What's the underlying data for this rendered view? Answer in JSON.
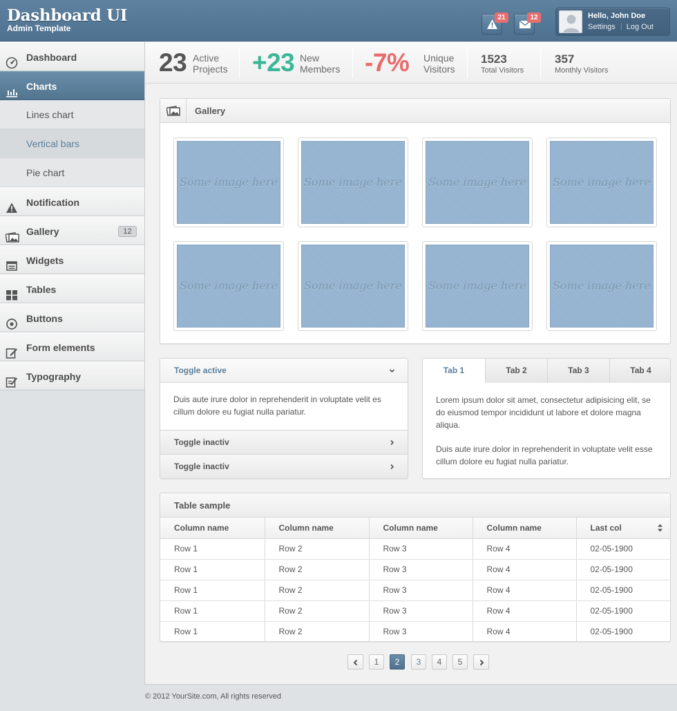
{
  "brand": {
    "title": "Dashboard UI",
    "subtitle": "Admin Template"
  },
  "header": {
    "alerts_count": "21",
    "messages_count": "12",
    "greeting": "Hello, John Doe",
    "settings_label": "Settings",
    "logout_label": "Log Out"
  },
  "sidebar": {
    "items": [
      {
        "label": "Dashboard",
        "icon": "dashboard-icon"
      },
      {
        "label": "Charts",
        "icon": "bar-chart-icon"
      },
      {
        "label": "Lines chart"
      },
      {
        "label": "Vertical bars"
      },
      {
        "label": "Pie chart"
      },
      {
        "label": "Notification",
        "icon": "warning-icon"
      },
      {
        "label": "Gallery",
        "icon": "gallery-icon",
        "count": "12"
      },
      {
        "label": "Widgets",
        "icon": "widgets-icon"
      },
      {
        "label": "Tables",
        "icon": "tables-icon"
      },
      {
        "label": "Buttons",
        "icon": "buttons-icon"
      },
      {
        "label": "Form elements",
        "icon": "form-edit-icon"
      },
      {
        "label": "Typography",
        "icon": "typography-edit-icon"
      }
    ]
  },
  "stats": {
    "projects_value": "23",
    "projects_l1": "Active",
    "projects_l2": "Projects",
    "members_value": "+23",
    "members_l1": "New",
    "members_l2": "Members",
    "visitors_value": "-7%",
    "visitors_l1": "Unique",
    "visitors_l2": "Visitors",
    "total_value": "1523",
    "total_label": "Total Visitors",
    "monthly_value": "357",
    "monthly_label": "Monthly Visitors",
    "colors": {
      "projects": "#555555",
      "members": "#3bb797",
      "visitors": "#e96b6b"
    }
  },
  "gallery": {
    "title": "Gallery",
    "images": [
      "Some image here",
      "Some image here",
      "Some image here",
      "Some image here",
      "Some image here",
      "Some image here",
      "Some image here",
      "Some image here"
    ]
  },
  "accordion": {
    "open_title": "Toggle active",
    "open_body": "Duis aute irure dolor in reprehenderit in voluptate velit es cillum dolore eu fugiat nulla pariatur.",
    "closed_1": "Toggle inactiv",
    "closed_2": "Toggle inactiv"
  },
  "tabs": {
    "labels": [
      "Tab 1",
      "Tab 2",
      "Tab 3",
      "Tab 4"
    ],
    "para1": "Lorem ipsum dolor sit amet, consectetur adipisicing elit, se do eiusmod tempor incididunt ut labore et dolore magna aliqua.",
    "para2": "Duis aute irure dolor in reprehenderit in voluptate velit esse cillum dolore eu fugiat nulla pariatur."
  },
  "table": {
    "title": "Table sample",
    "headers": [
      "Column name",
      "Column name",
      "Column name",
      "Column name",
      "Last col"
    ],
    "rows": [
      [
        "Row 1",
        "Row 2",
        "Row 3",
        "Row 4",
        "02-05-1900"
      ],
      [
        "Row 1",
        "Row 2",
        "Row 3",
        "Row 4",
        "02-05-1900"
      ],
      [
        "Row 1",
        "Row 2",
        "Row 3",
        "Row 4",
        "02-05-1900"
      ],
      [
        "Row 1",
        "Row 2",
        "Row 3",
        "Row 4",
        "02-05-1900"
      ],
      [
        "Row 1",
        "Row 2",
        "Row 3",
        "Row 4",
        "02-05-1900"
      ]
    ]
  },
  "pagination": {
    "pages": [
      "1",
      "2",
      "3",
      "4",
      "5"
    ],
    "current": "2"
  },
  "footer": {
    "text": "© 2012 YourSite.com,  All rights reserved"
  }
}
